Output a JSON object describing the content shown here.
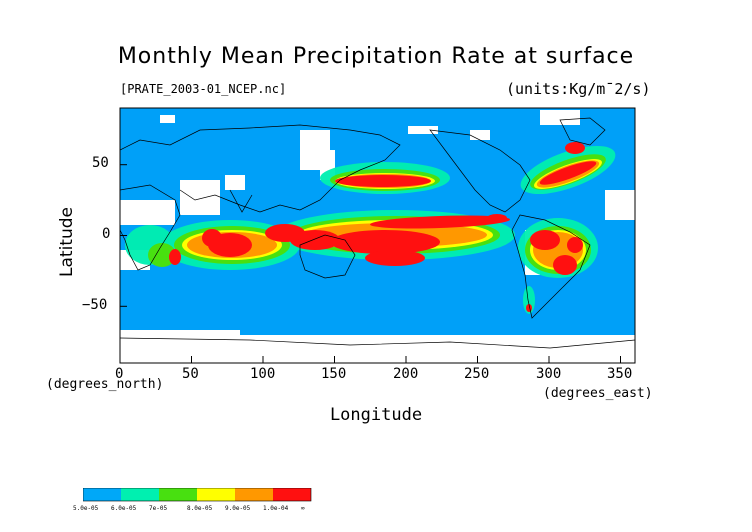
{
  "map": {
    "title": "Monthly Mean Precipitation Rate at surface",
    "filename": "[PRATE_2003-01_NCEP.nc]",
    "units": "(units:Kg/m¯2/s)",
    "xlabel": "Longitude",
    "ylabel": "Latitude",
    "x_unit": "(degrees_east)",
    "y_unit": "(degrees_north)",
    "x_ticks": [
      "0",
      "50",
      "100",
      "150",
      "200",
      "250",
      "300",
      "350"
    ],
    "y_ticks": [
      "50",
      "0",
      "−50"
    ],
    "xlim": [
      0,
      360
    ],
    "ylim": [
      -90,
      90
    ],
    "projection": "equirectangular, 0-360 longitude",
    "background_color": "#00a0f8",
    "missing_color": "#ffffff",
    "coastlines": "black outlines of continents"
  },
  "colorbar": {
    "colors": [
      "#00a8f8",
      "#00f0b0",
      "#48e010",
      "#ffff00",
      "#ff9800",
      "#ff1010"
    ],
    "labels": [
      "5.0e-05",
      "6.0e-05",
      "7e-05",
      "8.0e-05",
      "9.0e-05",
      "1.0e-04",
      "∞"
    ]
  }
}
